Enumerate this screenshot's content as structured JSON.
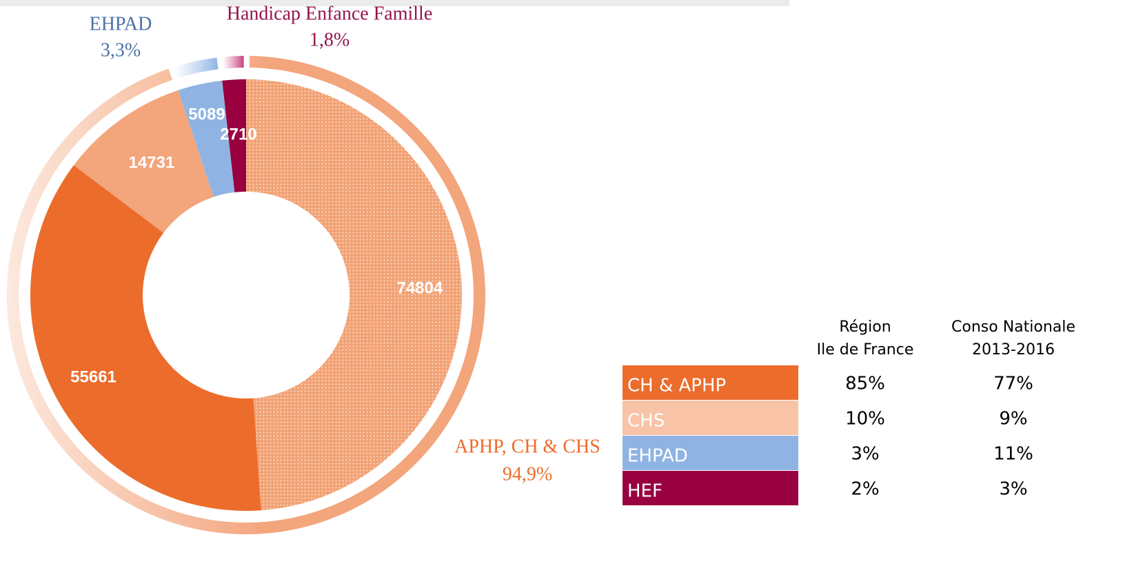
{
  "chart_data": {
    "type": "donut",
    "inner": {
      "values": [
        74804,
        55661,
        14731,
        5089,
        2710
      ],
      "colors": [
        "#f2a274",
        "#ec6c2c",
        "#f3a57c",
        "#8fb4e3",
        "#990040"
      ]
    },
    "outer": {
      "labels": [
        "APHP, CH & CHS",
        "EHPAD",
        "Handicap Enfance Famille"
      ],
      "values": [
        94.9,
        3.3,
        1.8
      ],
      "value_labels": [
        "94,9%",
        "3,3%",
        "1,8%"
      ],
      "colors": [
        "#f3a57c",
        "#8fb4e3",
        "#c8407a"
      ]
    }
  },
  "table": {
    "columns": [
      "Région\nIle de France",
      "Conso Nationale\n2013-2016"
    ],
    "rows": [
      {
        "label": "CH & APHP",
        "color": "#ec6c2c",
        "cells": [
          "85%",
          "77%"
        ]
      },
      {
        "label": "CHS",
        "color": "#f8c3a6",
        "cells": [
          "10%",
          "9%"
        ]
      },
      {
        "label": "EHPAD",
        "color": "#8fb4e3",
        "cells": [
          "3%",
          "11%"
        ]
      },
      {
        "label": "HEF",
        "color": "#990040",
        "cells": [
          "2%",
          "3%"
        ]
      }
    ]
  }
}
